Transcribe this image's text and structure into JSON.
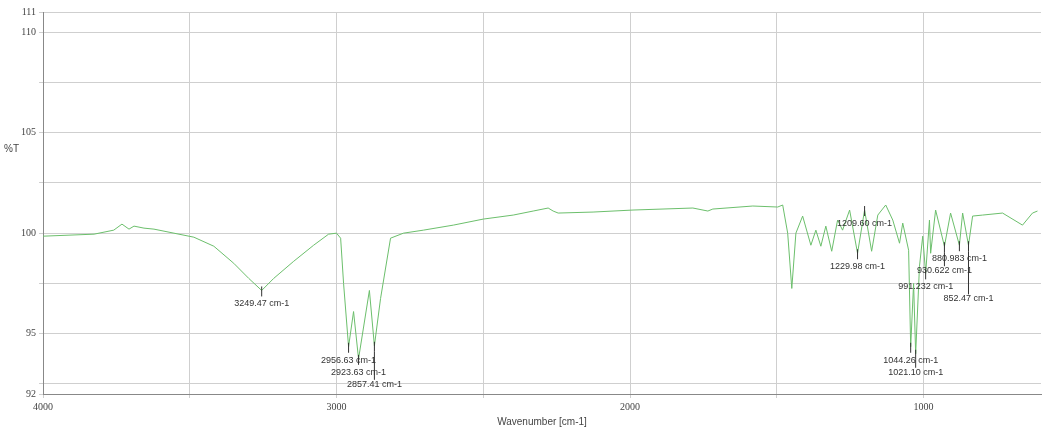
{
  "chart_data": {
    "type": "line",
    "xlabel": "Wavenumber [cm-1]",
    "ylabel": "%T",
    "xlim": [
      4000,
      600
    ],
    "ylim": [
      92,
      111
    ],
    "xticks": [
      4000,
      {
        "value": 3500,
        "label": null
      },
      3000,
      {
        "value": 2500,
        "label": null
      },
      2000,
      {
        "value": 1500,
        "label": null
      },
      1000
    ],
    "yticks": [
      92,
      {
        "value": 92.5,
        "label": null
      },
      95,
      {
        "value": 97.5,
        "label": null
      },
      100,
      {
        "value": 102.5,
        "label": null
      },
      105,
      {
        "value": 107.5,
        "label": null
      },
      110,
      111
    ],
    "grid": true,
    "legend": false,
    "marker": "none",
    "line_style": "solid",
    "series": [
      {
        "color": "#6cbf6c",
        "x": [
          4000,
          3826,
          3759,
          3731,
          3707,
          3690,
          3656,
          3622,
          3554,
          3486,
          3418,
          3350,
          3299,
          3255,
          3214,
          3146,
          3078,
          3027,
          3000,
          2986,
          2976,
          2959,
          2942,
          2925,
          2888,
          2871,
          2850,
          2816,
          2772,
          2704,
          2602,
          2500,
          2398,
          2330,
          2279,
          2262,
          2245,
          2126,
          1990,
          1786,
          1735,
          1718,
          1582,
          1497,
          1480,
          1463,
          1449,
          1435,
          1412,
          1384,
          1367,
          1350,
          1333,
          1313,
          1293,
          1276,
          1252,
          1225,
          1201,
          1177,
          1156,
          1129,
          1105,
          1082,
          1071,
          1051,
          1044,
          1034,
          1027,
          1014,
          1003,
          993,
          980,
          976,
          959,
          929,
          908,
          878,
          867,
          847,
          833,
          799,
          731,
          663,
          629,
          612
        ],
        "values": [
          99.85,
          99.95,
          100.15,
          100.45,
          100.2,
          100.35,
          100.25,
          100.2,
          100,
          99.8,
          99.35,
          98.5,
          97.75,
          97.15,
          97.75,
          98.6,
          99.4,
          99.95,
          100,
          99.75,
          97.5,
          94.35,
          96.1,
          93.75,
          97.15,
          94.4,
          96.75,
          99.75,
          100,
          100.15,
          100.4,
          100.7,
          100.9,
          101.1,
          101.25,
          101.1,
          101,
          101.05,
          101.15,
          101.25,
          101.1,
          101.2,
          101.35,
          101.3,
          101.4,
          100,
          97.25,
          100,
          100.85,
          99.4,
          100.15,
          99.35,
          100.35,
          99.1,
          100.65,
          100.15,
          101.15,
          99,
          101.15,
          99.1,
          100.9,
          101.4,
          100.65,
          99.5,
          100.5,
          99.15,
          94.35,
          97.5,
          94,
          98.35,
          99.85,
          98,
          100.65,
          99,
          101.15,
          99.35,
          101,
          99.4,
          101,
          99.4,
          100.85,
          100.9,
          101,
          100.4,
          101,
          101.1
        ]
      }
    ],
    "annotations": [
      {
        "text": "3249.47 cm-1",
        "x": 3255,
        "y": 97.15
      },
      {
        "text": "2956.63 cm-1",
        "x": 2959,
        "y": 94.35
      },
      {
        "text": "2923.63 cm-1",
        "x": 2925,
        "y": 93.75
      },
      {
        "text": "2857.41 cm-1",
        "x": 2871,
        "y": 94.4
      },
      {
        "text": "1229.98 cm-1",
        "x": 1225,
        "y": 99
      },
      {
        "text": "1209.60 cm-1",
        "x": 1201,
        "y": 101.15
      },
      {
        "text": "1044.26 cm-1",
        "x": 1044,
        "y": 94.35
      },
      {
        "text": "1021.10 cm-1",
        "x": 1027,
        "y": 94
      },
      {
        "text": "991.232 cm-1",
        "x": 993,
        "y": 98
      },
      {
        "text": "880.983 cm-1",
        "x": 878,
        "y": 99.4
      },
      {
        "text": "930.622 cm-1",
        "x": 929,
        "y": 99.35
      },
      {
        "text": "852.47 cm-1",
        "x": 847,
        "y": 99.4
      }
    ]
  }
}
